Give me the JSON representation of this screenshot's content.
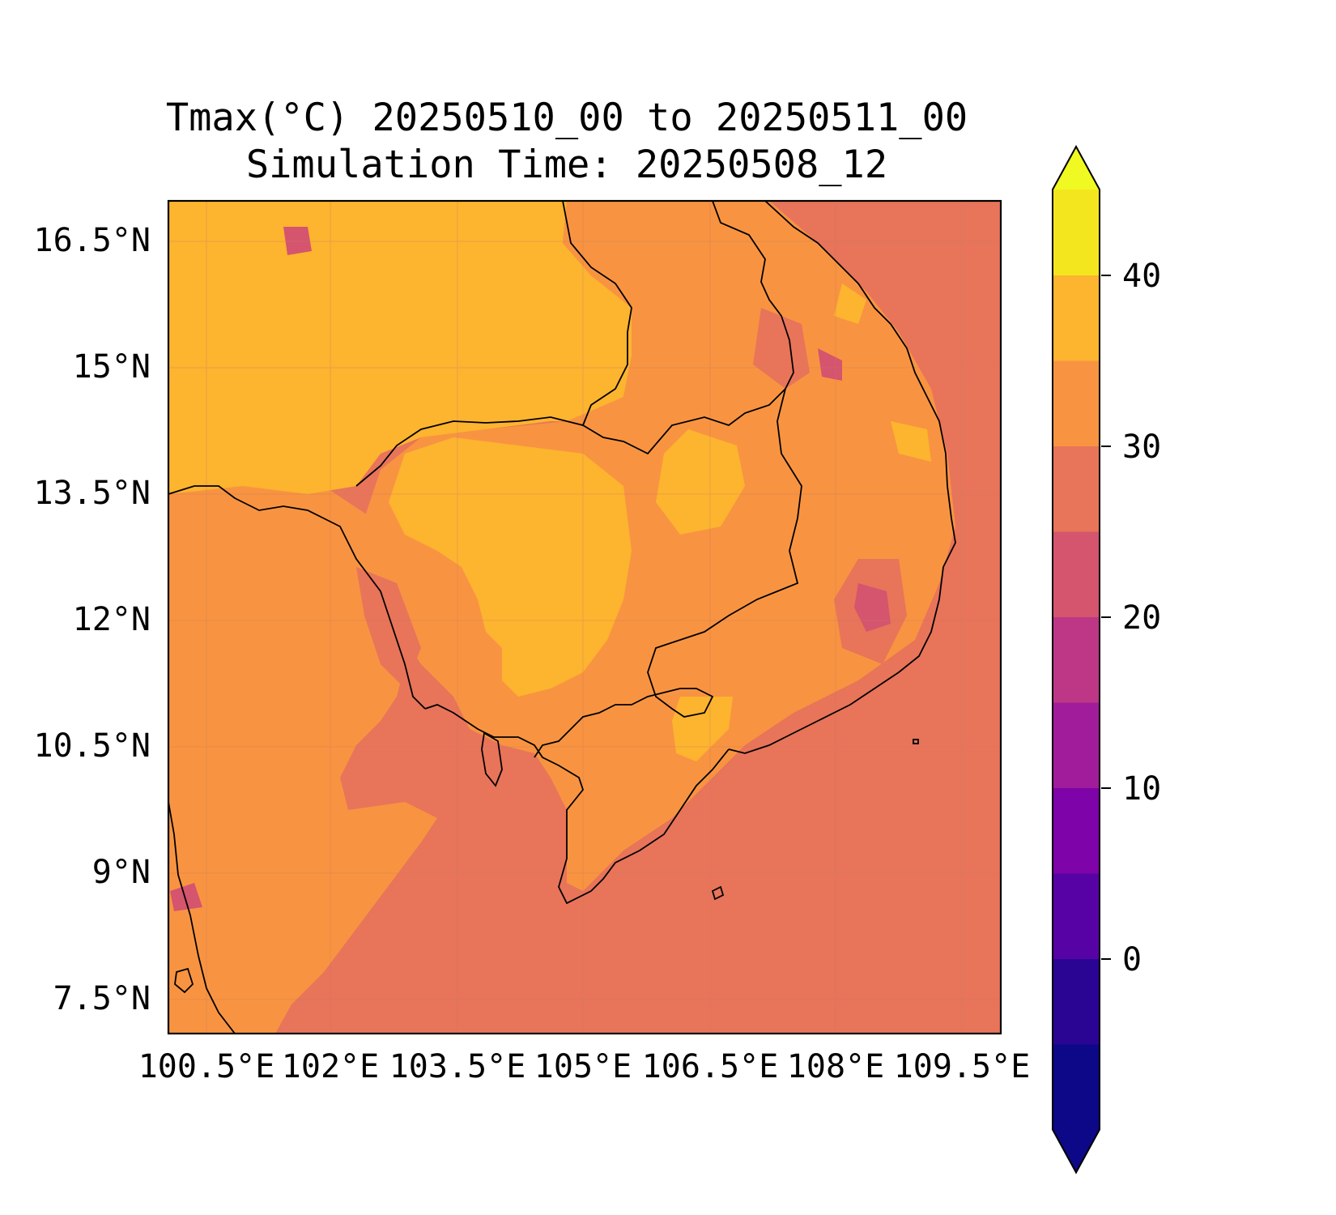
{
  "title": {
    "line1": "Tmax(°C) 20250510_00 to 20250511_00",
    "line2": "Simulation Time: 20250508_12"
  },
  "map": {
    "lon_ticks": [
      "100.5°E",
      "102°E",
      "103.5°E",
      "105°E",
      "106.5°E",
      "108°E",
      "109.5°E"
    ],
    "lat_ticks": [
      "16.5°N",
      "15°N",
      "13.5°N",
      "12°N",
      "10.5°N",
      "9°N",
      "7.5°N"
    ],
    "region": "Cambodia and southern Vietnam / Gulf of Thailand",
    "variable": "Tmax",
    "units": "°C"
  },
  "colorbar": {
    "ticks": [
      "40",
      "30",
      "20",
      "10",
      "0"
    ],
    "levels": [
      -5,
      0,
      5,
      10,
      15,
      20,
      25,
      30,
      35,
      40,
      45
    ],
    "colors": [
      "#0d0887",
      "#2a0593",
      "#5602a4",
      "#7e03a8",
      "#a11c9b",
      "#bd3786",
      "#d5546e",
      "#e8745a",
      "#f89441",
      "#fdb42f",
      "#f4e61e"
    ],
    "extend_low_color": "#0d0887",
    "extend_high_color": "#f0f921"
  }
}
